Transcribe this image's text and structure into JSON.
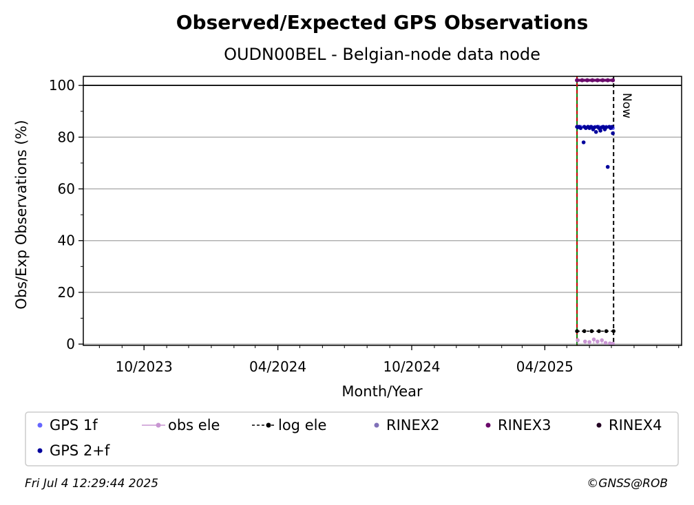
{
  "chart_data": {
    "type": "scatter",
    "title": "Observed/Expected GPS Observations",
    "subtitle": "OUDN00BEL - Belgian-node data node",
    "xlabel": "Month/Year",
    "ylabel": "Obs/Exp Observations (%)",
    "xlim": [
      "2023-07-10",
      "2025-10-05"
    ],
    "ylim": [
      -0.5,
      103.5
    ],
    "yticks": [
      0,
      20,
      40,
      60,
      80,
      100
    ],
    "xticks": [
      {
        "date": "2023-10-01",
        "label": "10/2023"
      },
      {
        "date": "2024-04-01",
        "label": "04/2024"
      },
      {
        "date": "2024-10-01",
        "label": "10/2024"
      },
      {
        "date": "2025-04-01",
        "label": "04/2025"
      }
    ],
    "grid": true,
    "reference_line_y": 100,
    "vertical_markers": [
      {
        "date": "2025-05-15",
        "style": "green-red dashed"
      },
      {
        "date": "2025-07-04",
        "style": "black dashed",
        "label": "Now"
      }
    ],
    "series": [
      {
        "name": "GPS 1f",
        "color": "#6666ff",
        "marker": "dot",
        "points": [
          {
            "x": "2025-05-16",
            "y": 84
          },
          {
            "x": "2025-05-20",
            "y": 84
          },
          {
            "x": "2025-05-25",
            "y": 84
          },
          {
            "x": "2025-05-30",
            "y": 84
          },
          {
            "x": "2025-06-04",
            "y": 84
          },
          {
            "x": "2025-06-09",
            "y": 84
          },
          {
            "x": "2025-06-14",
            "y": 84
          },
          {
            "x": "2025-06-19",
            "y": 84
          },
          {
            "x": "2025-06-24",
            "y": 84
          },
          {
            "x": "2025-06-29",
            "y": 84
          },
          {
            "x": "2025-07-03",
            "y": 83.5
          }
        ]
      },
      {
        "name": "GPS 2+f",
        "color": "#00009c",
        "marker": "dot",
        "points": [
          {
            "x": "2025-05-15",
            "y": 84
          },
          {
            "x": "2025-05-16",
            "y": 83.8
          },
          {
            "x": "2025-05-18",
            "y": 84
          },
          {
            "x": "2025-05-20",
            "y": 83.5
          },
          {
            "x": "2025-05-24",
            "y": 78
          },
          {
            "x": "2025-05-25",
            "y": 84
          },
          {
            "x": "2025-05-27",
            "y": 83.5
          },
          {
            "x": "2025-05-30",
            "y": 84
          },
          {
            "x": "2025-06-01",
            "y": 83.5
          },
          {
            "x": "2025-06-03",
            "y": 84
          },
          {
            "x": "2025-06-06",
            "y": 83
          },
          {
            "x": "2025-06-08",
            "y": 83.8
          },
          {
            "x": "2025-06-10",
            "y": 82
          },
          {
            "x": "2025-06-12",
            "y": 84
          },
          {
            "x": "2025-06-14",
            "y": 83.5
          },
          {
            "x": "2025-06-16",
            "y": 82.5
          },
          {
            "x": "2025-06-18",
            "y": 83.8
          },
          {
            "x": "2025-06-20",
            "y": 84
          },
          {
            "x": "2025-06-22",
            "y": 83
          },
          {
            "x": "2025-06-24",
            "y": 83.8
          },
          {
            "x": "2025-06-26",
            "y": 68.5
          },
          {
            "x": "2025-06-28",
            "y": 84
          },
          {
            "x": "2025-06-30",
            "y": 83.5
          },
          {
            "x": "2025-07-02",
            "y": 84
          },
          {
            "x": "2025-07-03",
            "y": 81.5
          }
        ]
      },
      {
        "name": "obs ele",
        "color": "#c896d2",
        "marker": "dot-line",
        "points": [
          {
            "x": "2025-05-16",
            "y": 1.5
          },
          {
            "x": "2025-05-26",
            "y": 1
          },
          {
            "x": "2025-06-01",
            "y": 0.8
          },
          {
            "x": "2025-06-07",
            "y": 1.8
          },
          {
            "x": "2025-06-12",
            "y": 1
          },
          {
            "x": "2025-06-18",
            "y": 1.5
          },
          {
            "x": "2025-06-23",
            "y": 0.5
          },
          {
            "x": "2025-06-29",
            "y": 0.3
          },
          {
            "x": "2025-07-03",
            "y": 0.2
          }
        ]
      },
      {
        "name": "log ele",
        "color": "#000000",
        "marker": "dot-dashed-line",
        "points": [
          {
            "x": "2025-05-15",
            "y": 5
          },
          {
            "x": "2025-05-25",
            "y": 5
          },
          {
            "x": "2025-06-04",
            "y": 5
          },
          {
            "x": "2025-06-14",
            "y": 5
          },
          {
            "x": "2025-06-24",
            "y": 5
          },
          {
            "x": "2025-07-04",
            "y": 5
          }
        ]
      },
      {
        "name": "RINEX2",
        "color": "#8070b8",
        "marker": "dot",
        "points": []
      },
      {
        "name": "RINEX3",
        "color": "#6a0a6a",
        "marker": "dot",
        "points": [
          {
            "x": "2025-05-15",
            "y": 102
          },
          {
            "x": "2025-05-22",
            "y": 102
          },
          {
            "x": "2025-05-29",
            "y": 102
          },
          {
            "x": "2025-06-05",
            "y": 102
          },
          {
            "x": "2025-06-12",
            "y": 102
          },
          {
            "x": "2025-06-19",
            "y": 102
          },
          {
            "x": "2025-06-26",
            "y": 102
          },
          {
            "x": "2025-07-03",
            "y": 102
          }
        ]
      },
      {
        "name": "RINEX4",
        "color": "#220022",
        "marker": "dot",
        "points": []
      }
    ],
    "legend": {
      "placement": "bottom",
      "entries": [
        "GPS 1f",
        "obs ele",
        "log ele",
        "RINEX2",
        "RINEX3",
        "RINEX4",
        "GPS 2+f"
      ]
    }
  },
  "footer": {
    "timestamp": "Fri Jul  4 12:29:44 2025",
    "copyright": "©GNSS@ROB"
  }
}
